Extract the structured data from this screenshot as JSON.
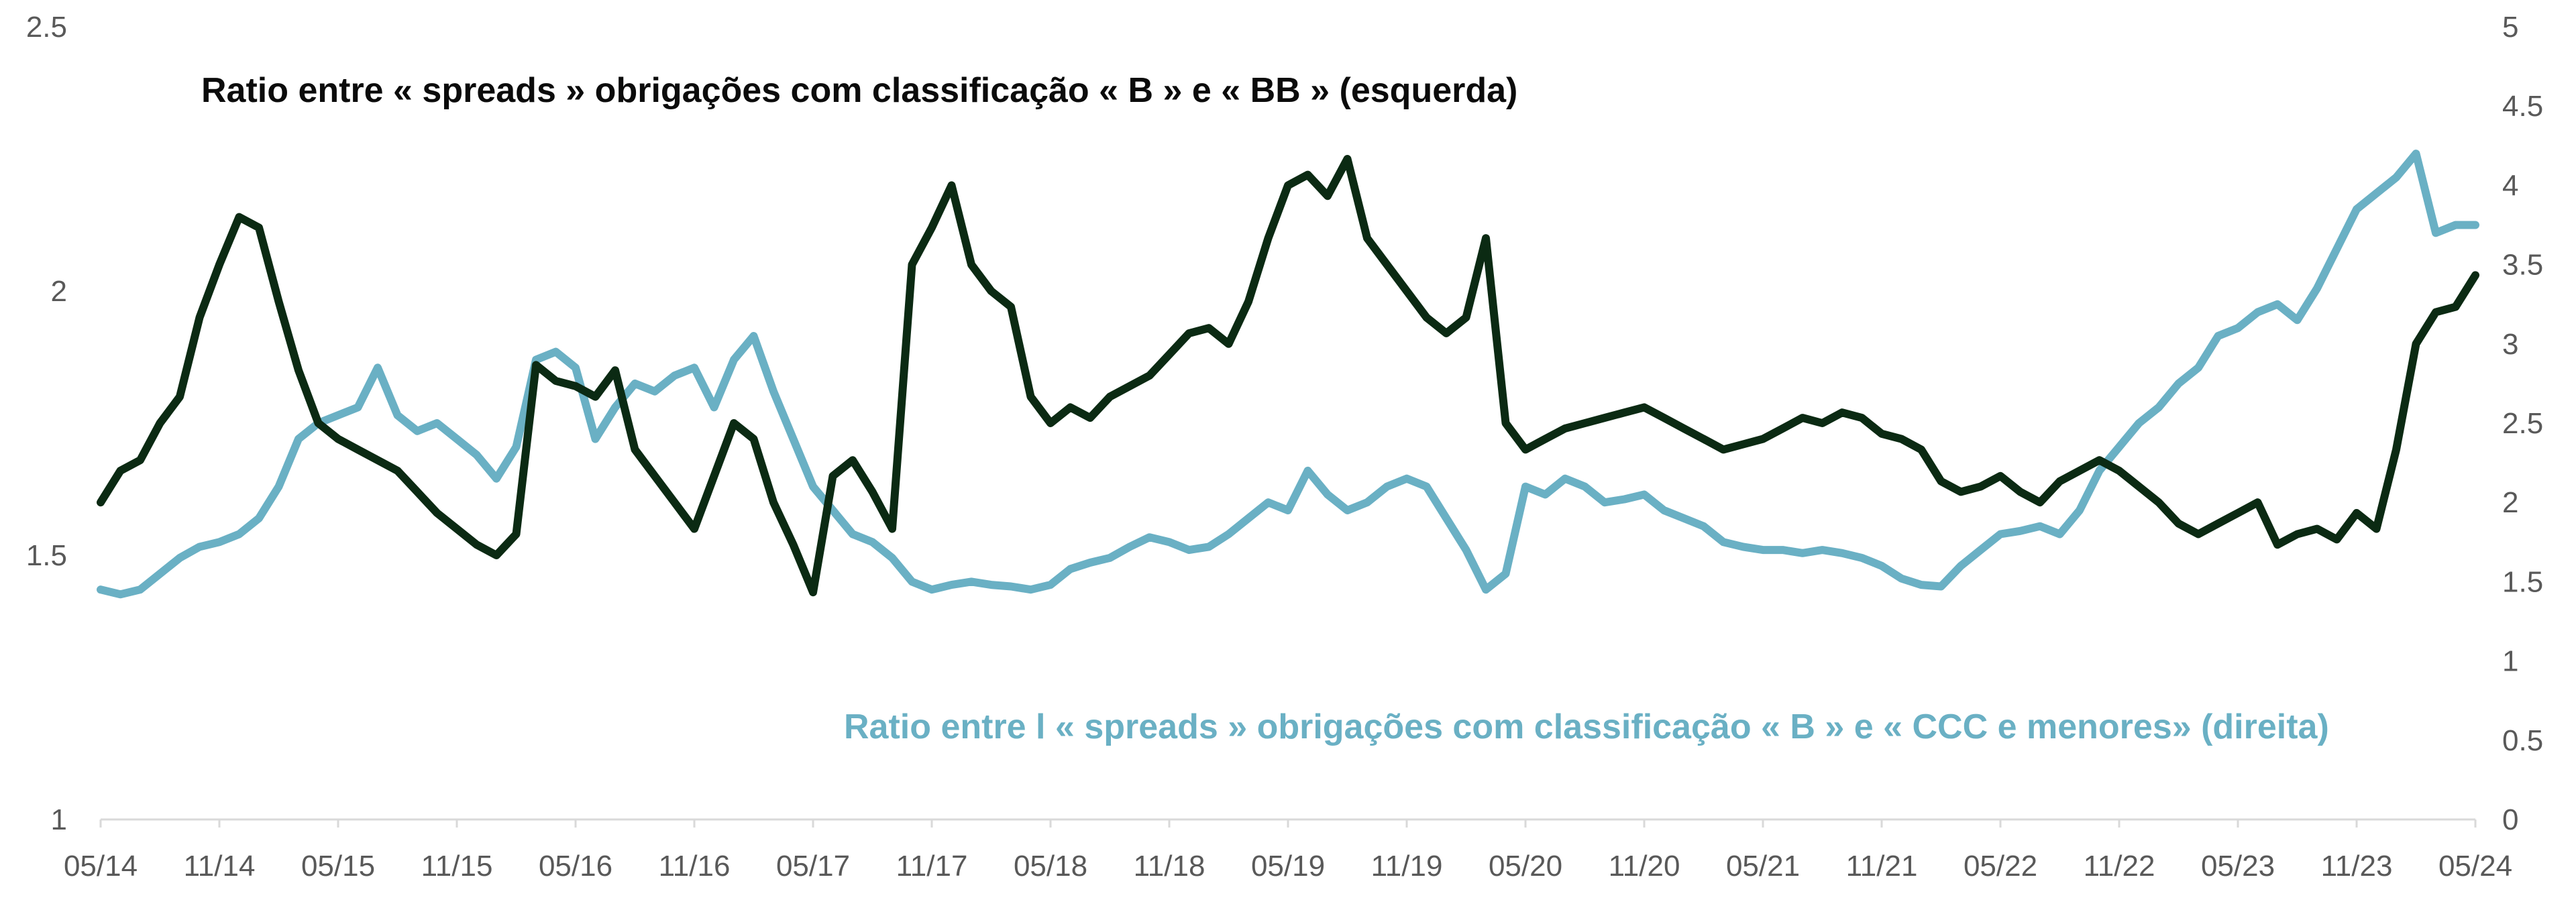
{
  "chart_data": {
    "type": "line",
    "x_tick_labels": [
      "05/14",
      "11/14",
      "05/15",
      "11/15",
      "05/16",
      "11/16",
      "05/17",
      "11/17",
      "05/18",
      "11/18",
      "05/19",
      "11/19",
      "05/20",
      "11/20",
      "05/21",
      "11/21",
      "05/22",
      "11/22",
      "05/23",
      "11/23",
      "05/24"
    ],
    "y_left": {
      "ticks": [
        "1",
        "1.5",
        "2",
        "2.5"
      ],
      "range": [
        1,
        2.5
      ]
    },
    "y_right": {
      "ticks": [
        "0",
        "0.5",
        "1",
        "1.5",
        "2",
        "2.5",
        "3",
        "3.5",
        "4",
        "4.5",
        "5"
      ],
      "range": [
        0,
        5
      ]
    },
    "grid": false,
    "series": [
      {
        "name": "Ratio entre « spreads » obrigações com classificação « B » e « BB » (esquerda)",
        "axis": "left",
        "color": "#0b2a13",
        "points": [
          [
            "2014-05",
            1.6
          ],
          [
            "2014-06",
            1.66
          ],
          [
            "2014-07",
            1.68
          ],
          [
            "2014-08",
            1.75
          ],
          [
            "2014-09",
            1.8
          ],
          [
            "2014-10",
            1.95
          ],
          [
            "2014-11",
            2.05
          ],
          [
            "2014-12",
            2.14
          ],
          [
            "2015-01",
            2.12
          ],
          [
            "2015-02",
            1.98
          ],
          [
            "2015-03",
            1.85
          ],
          [
            "2015-04",
            1.75
          ],
          [
            "2015-05",
            1.72
          ],
          [
            "2015-06",
            1.7
          ],
          [
            "2015-07",
            1.68
          ],
          [
            "2015-08",
            1.66
          ],
          [
            "2015-09",
            1.62
          ],
          [
            "2015-10",
            1.58
          ],
          [
            "2015-11",
            1.55
          ],
          [
            "2015-12",
            1.52
          ],
          [
            "2016-01",
            1.5
          ],
          [
            "2016-02",
            1.54
          ],
          [
            "2016-03",
            1.86
          ],
          [
            "2016-04",
            1.83
          ],
          [
            "2016-05",
            1.82
          ],
          [
            "2016-06",
            1.8
          ],
          [
            "2016-07",
            1.85
          ],
          [
            "2016-08",
            1.7
          ],
          [
            "2016-09",
            1.65
          ],
          [
            "2016-10",
            1.6
          ],
          [
            "2016-11",
            1.55
          ],
          [
            "2016-12",
            1.65
          ],
          [
            "2017-01",
            1.75
          ],
          [
            "2017-02",
            1.72
          ],
          [
            "2017-03",
            1.6
          ],
          [
            "2017-04",
            1.52
          ],
          [
            "2017-05",
            1.43
          ],
          [
            "2017-06",
            1.65
          ],
          [
            "2017-07",
            1.68
          ],
          [
            "2017-08",
            1.62
          ],
          [
            "2017-09",
            1.55
          ],
          [
            "2017-10",
            2.05
          ],
          [
            "2017-11",
            2.12
          ],
          [
            "2017-12",
            2.2
          ],
          [
            "2018-01",
            2.05
          ],
          [
            "2018-02",
            2.0
          ],
          [
            "2018-03",
            1.97
          ],
          [
            "2018-04",
            1.8
          ],
          [
            "2018-05",
            1.75
          ],
          [
            "2018-06",
            1.78
          ],
          [
            "2018-07",
            1.76
          ],
          [
            "2018-08",
            1.8
          ],
          [
            "2018-09",
            1.82
          ],
          [
            "2018-10",
            1.84
          ],
          [
            "2018-11",
            1.88
          ],
          [
            "2018-12",
            1.92
          ],
          [
            "2019-01",
            1.93
          ],
          [
            "2019-02",
            1.9
          ],
          [
            "2019-03",
            1.98
          ],
          [
            "2019-04",
            2.1
          ],
          [
            "2019-05",
            2.2
          ],
          [
            "2019-06",
            2.22
          ],
          [
            "2019-07",
            2.18
          ],
          [
            "2019-08",
            2.25
          ],
          [
            "2019-09",
            2.1
          ],
          [
            "2019-10",
            2.05
          ],
          [
            "2019-11",
            2.0
          ],
          [
            "2019-12",
            1.95
          ],
          [
            "2020-01",
            1.92
          ],
          [
            "2020-02",
            1.95
          ],
          [
            "2020-03",
            2.1
          ],
          [
            "2020-04",
            1.75
          ],
          [
            "2020-05",
            1.7
          ],
          [
            "2020-06",
            1.72
          ],
          [
            "2020-07",
            1.74
          ],
          [
            "2020-08",
            1.75
          ],
          [
            "2020-09",
            1.76
          ],
          [
            "2020-10",
            1.77
          ],
          [
            "2020-11",
            1.78
          ],
          [
            "2020-12",
            1.76
          ],
          [
            "2021-01",
            1.74
          ],
          [
            "2021-02",
            1.72
          ],
          [
            "2021-03",
            1.7
          ],
          [
            "2021-04",
            1.71
          ],
          [
            "2021-05",
            1.72
          ],
          [
            "2021-06",
            1.74
          ],
          [
            "2021-07",
            1.76
          ],
          [
            "2021-08",
            1.75
          ],
          [
            "2021-09",
            1.77
          ],
          [
            "2021-10",
            1.76
          ],
          [
            "2021-11",
            1.73
          ],
          [
            "2021-12",
            1.72
          ],
          [
            "2022-01",
            1.7
          ],
          [
            "2022-02",
            1.64
          ],
          [
            "2022-03",
            1.62
          ],
          [
            "2022-04",
            1.63
          ],
          [
            "2022-05",
            1.65
          ],
          [
            "2022-06",
            1.62
          ],
          [
            "2022-07",
            1.6
          ],
          [
            "2022-08",
            1.64
          ],
          [
            "2022-09",
            1.66
          ],
          [
            "2022-10",
            1.68
          ],
          [
            "2022-11",
            1.66
          ],
          [
            "2022-12",
            1.63
          ],
          [
            "2023-01",
            1.6
          ],
          [
            "2023-02",
            1.56
          ],
          [
            "2023-03",
            1.54
          ],
          [
            "2023-04",
            1.56
          ],
          [
            "2023-05",
            1.58
          ],
          [
            "2023-06",
            1.6
          ],
          [
            "2023-07",
            1.52
          ],
          [
            "2023-08",
            1.54
          ],
          [
            "2023-09",
            1.55
          ],
          [
            "2023-10",
            1.53
          ],
          [
            "2023-11",
            1.58
          ],
          [
            "2023-12",
            1.55
          ],
          [
            "2024-01",
            1.7
          ],
          [
            "2024-02",
            1.9
          ],
          [
            "2024-03",
            1.96
          ],
          [
            "2024-04",
            1.97
          ],
          [
            "2024-05",
            2.03
          ]
        ]
      },
      {
        "name": "Ratio entre l « spreads » obrigações com classificação « B » e « CCC e menores» (direita)",
        "axis": "right",
        "color": "#6ab0c4",
        "points": [
          [
            "2014-05",
            1.45
          ],
          [
            "2014-06",
            1.42
          ],
          [
            "2014-07",
            1.45
          ],
          [
            "2014-08",
            1.55
          ],
          [
            "2014-09",
            1.65
          ],
          [
            "2014-10",
            1.72
          ],
          [
            "2014-11",
            1.75
          ],
          [
            "2014-12",
            1.8
          ],
          [
            "2015-01",
            1.9
          ],
          [
            "2015-02",
            2.1
          ],
          [
            "2015-03",
            2.4
          ],
          [
            "2015-04",
            2.5
          ],
          [
            "2015-05",
            2.55
          ],
          [
            "2015-06",
            2.6
          ],
          [
            "2015-07",
            2.85
          ],
          [
            "2015-08",
            2.55
          ],
          [
            "2015-09",
            2.45
          ],
          [
            "2015-10",
            2.5
          ],
          [
            "2015-11",
            2.4
          ],
          [
            "2015-12",
            2.3
          ],
          [
            "2016-01",
            2.15
          ],
          [
            "2016-02",
            2.35
          ],
          [
            "2016-03",
            2.9
          ],
          [
            "2016-04",
            2.95
          ],
          [
            "2016-05",
            2.85
          ],
          [
            "2016-06",
            2.4
          ],
          [
            "2016-07",
            2.6
          ],
          [
            "2016-08",
            2.75
          ],
          [
            "2016-09",
            2.7
          ],
          [
            "2016-10",
            2.8
          ],
          [
            "2016-11",
            2.85
          ],
          [
            "2016-12",
            2.6
          ],
          [
            "2017-01",
            2.9
          ],
          [
            "2017-02",
            3.05
          ],
          [
            "2017-03",
            2.7
          ],
          [
            "2017-04",
            2.4
          ],
          [
            "2017-05",
            2.1
          ],
          [
            "2017-06",
            1.95
          ],
          [
            "2017-07",
            1.8
          ],
          [
            "2017-08",
            1.75
          ],
          [
            "2017-09",
            1.65
          ],
          [
            "2017-10",
            1.5
          ],
          [
            "2017-11",
            1.45
          ],
          [
            "2017-12",
            1.48
          ],
          [
            "2018-01",
            1.5
          ],
          [
            "2018-02",
            1.48
          ],
          [
            "2018-03",
            1.47
          ],
          [
            "2018-04",
            1.45
          ],
          [
            "2018-05",
            1.48
          ],
          [
            "2018-06",
            1.58
          ],
          [
            "2018-07",
            1.62
          ],
          [
            "2018-08",
            1.65
          ],
          [
            "2018-09",
            1.72
          ],
          [
            "2018-10",
            1.78
          ],
          [
            "2018-11",
            1.75
          ],
          [
            "2018-12",
            1.7
          ],
          [
            "2019-01",
            1.72
          ],
          [
            "2019-02",
            1.8
          ],
          [
            "2019-03",
            1.9
          ],
          [
            "2019-04",
            2.0
          ],
          [
            "2019-05",
            1.95
          ],
          [
            "2019-06",
            2.2
          ],
          [
            "2019-07",
            2.05
          ],
          [
            "2019-08",
            1.95
          ],
          [
            "2019-09",
            2.0
          ],
          [
            "2019-10",
            2.1
          ],
          [
            "2019-11",
            2.15
          ],
          [
            "2019-12",
            2.1
          ],
          [
            "2020-01",
            1.9
          ],
          [
            "2020-02",
            1.7
          ],
          [
            "2020-03",
            1.45
          ],
          [
            "2020-04",
            1.55
          ],
          [
            "2020-05",
            2.1
          ],
          [
            "2020-06",
            2.05
          ],
          [
            "2020-07",
            2.15
          ],
          [
            "2020-08",
            2.1
          ],
          [
            "2020-09",
            2.0
          ],
          [
            "2020-10",
            2.02
          ],
          [
            "2020-11",
            2.05
          ],
          [
            "2020-12",
            1.95
          ],
          [
            "2021-01",
            1.9
          ],
          [
            "2021-02",
            1.85
          ],
          [
            "2021-03",
            1.75
          ],
          [
            "2021-04",
            1.72
          ],
          [
            "2021-05",
            1.7
          ],
          [
            "2021-06",
            1.7
          ],
          [
            "2021-07",
            1.68
          ],
          [
            "2021-08",
            1.7
          ],
          [
            "2021-09",
            1.68
          ],
          [
            "2021-10",
            1.65
          ],
          [
            "2021-11",
            1.6
          ],
          [
            "2021-12",
            1.52
          ],
          [
            "2022-01",
            1.48
          ],
          [
            "2022-02",
            1.47
          ],
          [
            "2022-03",
            1.6
          ],
          [
            "2022-04",
            1.7
          ],
          [
            "2022-05",
            1.8
          ],
          [
            "2022-06",
            1.82
          ],
          [
            "2022-07",
            1.85
          ],
          [
            "2022-08",
            1.8
          ],
          [
            "2022-09",
            1.95
          ],
          [
            "2022-10",
            2.2
          ],
          [
            "2022-11",
            2.35
          ],
          [
            "2022-12",
            2.5
          ],
          [
            "2023-01",
            2.6
          ],
          [
            "2023-02",
            2.75
          ],
          [
            "2023-03",
            2.85
          ],
          [
            "2023-04",
            3.05
          ],
          [
            "2023-05",
            3.1
          ],
          [
            "2023-06",
            3.2
          ],
          [
            "2023-07",
            3.25
          ],
          [
            "2023-08",
            3.15
          ],
          [
            "2023-09",
            3.35
          ],
          [
            "2023-10",
            3.6
          ],
          [
            "2023-11",
            3.85
          ],
          [
            "2023-12",
            3.95
          ],
          [
            "2024-01",
            4.05
          ],
          [
            "2024-02",
            4.2
          ],
          [
            "2024-03",
            3.7
          ],
          [
            "2024-04",
            3.75
          ],
          [
            "2024-05",
            3.75
          ]
        ]
      }
    ]
  }
}
